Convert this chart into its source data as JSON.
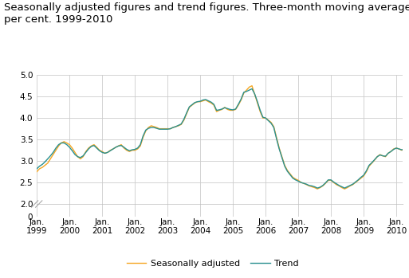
{
  "title": "Seasonally adjusted figures and trend figures. Three-month moving average in\nper cent. 1999-2010",
  "title_fontsize": 9.5,
  "background_color": "#ffffff",
  "grid_color": "#cccccc",
  "seasonally_adjusted_color": "#f5a623",
  "trend_color": "#2a9090",
  "legend_labels": [
    "Seasonally adjusted",
    "Trend"
  ],
  "x_tick_years": [
    1999,
    2000,
    2001,
    2002,
    2003,
    2004,
    2005,
    2006,
    2007,
    2008,
    2009,
    2010
  ],
  "seasonally_adjusted": [
    2.75,
    2.82,
    2.85,
    2.9,
    2.95,
    3.05,
    3.15,
    3.25,
    3.35,
    3.42,
    3.45,
    3.42,
    3.38,
    3.3,
    3.2,
    3.1,
    3.05,
    3.1,
    3.22,
    3.3,
    3.35,
    3.38,
    3.32,
    3.25,
    3.22,
    3.18,
    3.2,
    3.25,
    3.28,
    3.32,
    3.35,
    3.38,
    3.3,
    3.25,
    3.22,
    3.25,
    3.25,
    3.28,
    3.35,
    3.55,
    3.7,
    3.78,
    3.82,
    3.8,
    3.78,
    3.75,
    3.75,
    3.75,
    3.75,
    3.75,
    3.78,
    3.8,
    3.82,
    3.85,
    3.95,
    4.1,
    4.25,
    4.3,
    4.35,
    4.38,
    4.38,
    4.4,
    4.42,
    4.38,
    4.35,
    4.3,
    4.15,
    4.18,
    4.2,
    4.25,
    4.2,
    4.18,
    4.18,
    4.2,
    4.3,
    4.42,
    4.58,
    4.65,
    4.72,
    4.75,
    4.55,
    4.35,
    4.15,
    4.0,
    4.0,
    3.95,
    3.9,
    3.8,
    3.55,
    3.3,
    3.1,
    2.9,
    2.78,
    2.7,
    2.62,
    2.58,
    2.55,
    2.5,
    2.48,
    2.45,
    2.42,
    2.4,
    2.38,
    2.35,
    2.38,
    2.42,
    2.48,
    2.55,
    2.55,
    2.5,
    2.45,
    2.42,
    2.38,
    2.35,
    2.38,
    2.42,
    2.45,
    2.5,
    2.55,
    2.6,
    2.65,
    2.75,
    2.88,
    2.95,
    3.02,
    3.1,
    3.15,
    3.12,
    3.1,
    3.18,
    3.22,
    3.28,
    3.3,
    3.28,
    3.25,
    3.28,
    3.3,
    3.32,
    3.32,
    3.35,
    3.35
  ],
  "trend": [
    2.82,
    2.88,
    2.92,
    2.98,
    3.05,
    3.12,
    3.2,
    3.3,
    3.38,
    3.42,
    3.42,
    3.38,
    3.32,
    3.24,
    3.15,
    3.1,
    3.08,
    3.12,
    3.2,
    3.28,
    3.34,
    3.36,
    3.3,
    3.24,
    3.2,
    3.18,
    3.2,
    3.24,
    3.28,
    3.32,
    3.35,
    3.36,
    3.32,
    3.27,
    3.24,
    3.26,
    3.27,
    3.3,
    3.38,
    3.58,
    3.72,
    3.76,
    3.78,
    3.78,
    3.76,
    3.74,
    3.74,
    3.74,
    3.74,
    3.75,
    3.78,
    3.8,
    3.83,
    3.86,
    3.97,
    4.12,
    4.26,
    4.31,
    4.36,
    4.38,
    4.39,
    4.42,
    4.43,
    4.4,
    4.37,
    4.32,
    4.18,
    4.19,
    4.21,
    4.24,
    4.22,
    4.2,
    4.19,
    4.21,
    4.32,
    4.44,
    4.6,
    4.62,
    4.65,
    4.68,
    4.56,
    4.38,
    4.18,
    4.02,
    4.0,
    3.94,
    3.88,
    3.78,
    3.52,
    3.28,
    3.08,
    2.88,
    2.76,
    2.68,
    2.6,
    2.56,
    2.53,
    2.5,
    2.48,
    2.46,
    2.43,
    2.42,
    2.4,
    2.37,
    2.39,
    2.43,
    2.49,
    2.56,
    2.56,
    2.51,
    2.47,
    2.43,
    2.4,
    2.37,
    2.4,
    2.43,
    2.46,
    2.51,
    2.56,
    2.62,
    2.67,
    2.77,
    2.9,
    2.96,
    3.03,
    3.1,
    3.14,
    3.12,
    3.11,
    3.18,
    3.22,
    3.27,
    3.3,
    3.28,
    3.26,
    3.28,
    3.3,
    3.32,
    3.32,
    3.35,
    3.35
  ]
}
